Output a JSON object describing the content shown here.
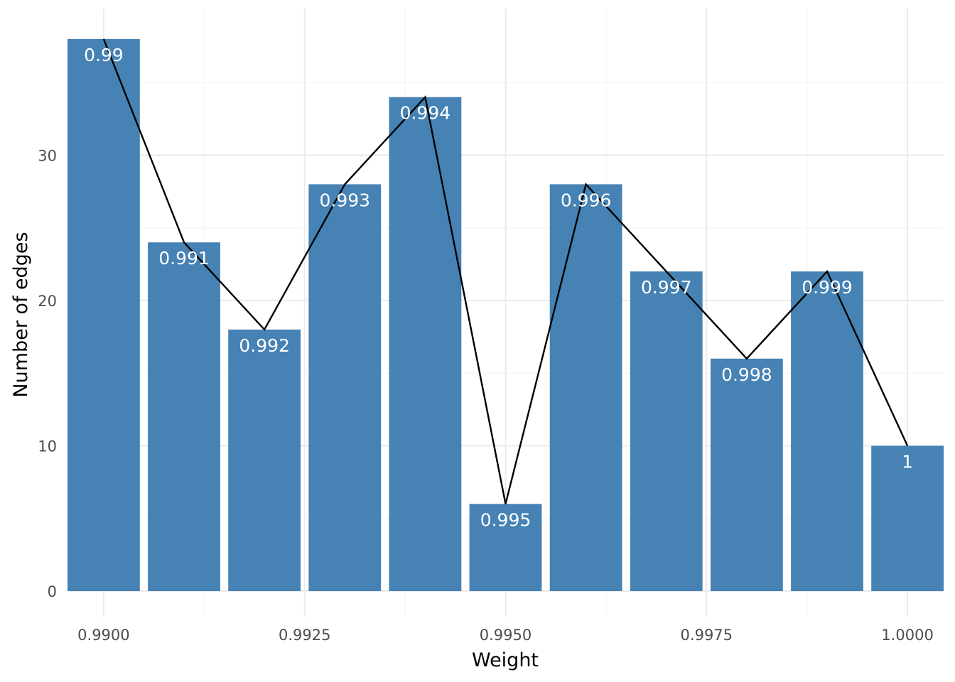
{
  "chart_data": {
    "type": "bar",
    "x": [
      0.99,
      0.991,
      0.992,
      0.993,
      0.994,
      0.995,
      0.996,
      0.997,
      0.998,
      0.999,
      1.0
    ],
    "values": [
      38,
      24,
      18,
      28,
      34,
      6,
      28,
      22,
      16,
      22,
      10
    ],
    "data_labels": [
      "0.99",
      "0.991",
      "0.992",
      "0.993",
      "0.994",
      "0.995",
      "0.996",
      "0.997",
      "0.998",
      "0.999",
      "1"
    ],
    "overlay": {
      "type": "line",
      "color": "#000000"
    },
    "bar_color": "#4682b4",
    "xlabel": "Weight",
    "ylabel": "Number of edges",
    "xlim": [
      0.98955,
      1.00045
    ],
    "ylim": [
      0,
      40
    ],
    "x_ticks": [
      0.99,
      0.9925,
      0.995,
      0.9975,
      1.0
    ],
    "x_tick_labels": [
      "0.9900",
      "0.9925",
      "0.9950",
      "0.9975",
      "1.0000"
    ],
    "x_minor_ticks": [
      0.99125,
      0.99375,
      0.99625,
      0.99875
    ],
    "y_ticks": [
      0,
      10,
      20,
      30
    ],
    "y_tick_labels": [
      "0",
      "10",
      "20",
      "30"
    ],
    "y_minor_ticks": [
      5,
      15,
      25,
      35
    ],
    "grid": true,
    "legend": "none"
  }
}
